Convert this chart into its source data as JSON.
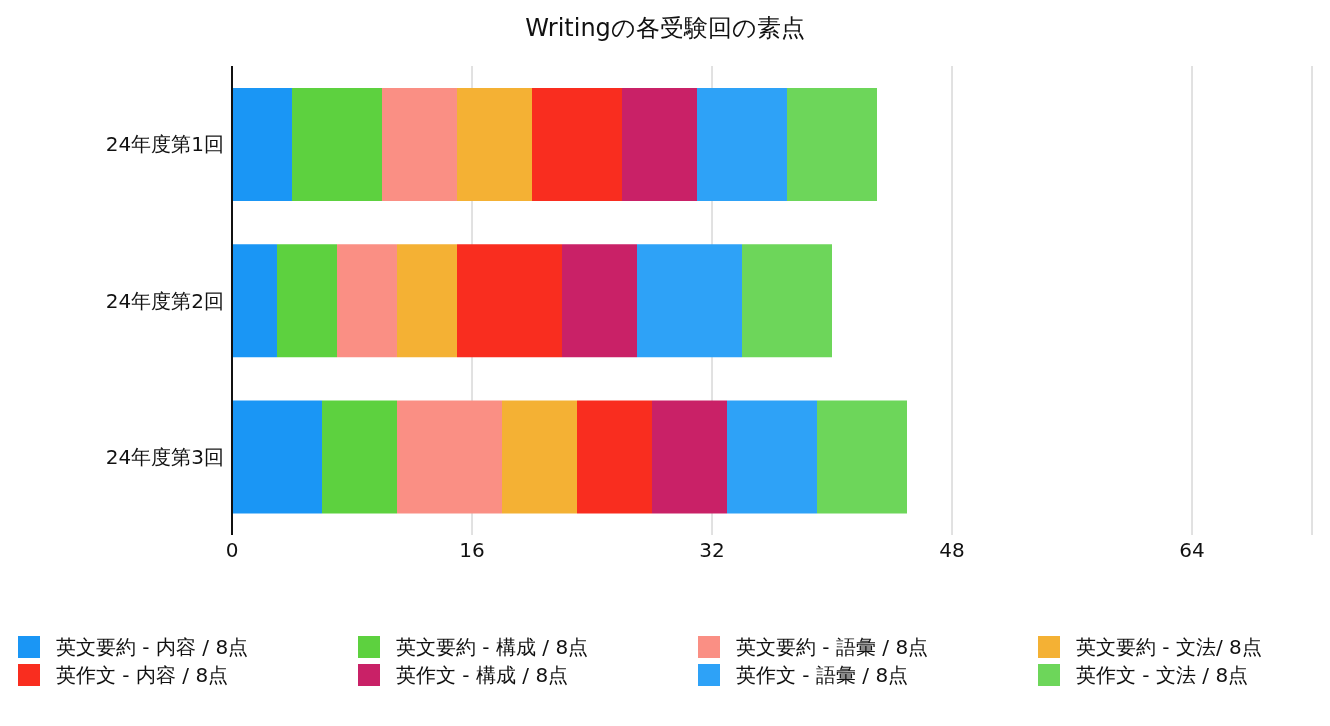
{
  "chart_data": {
    "type": "bar",
    "orientation": "horizontal",
    "stacked": true,
    "title": "Writingの各受験回の素点",
    "categories": [
      "24年度第1回",
      "24年度第2回",
      "24年度第3回"
    ],
    "series": [
      {
        "name": "英文要約 - 内容 / 8点",
        "color": "#1a96f5",
        "values": [
          4,
          3,
          6
        ]
      },
      {
        "name": "英文要約 - 構成 / 8点",
        "color": "#5dd13f",
        "values": [
          6,
          4,
          5
        ]
      },
      {
        "name": "英文要約 - 語彙 / 8点",
        "color": "#fa8f84",
        "values": [
          5,
          4,
          7
        ]
      },
      {
        "name": "英文要約 - 文法/ 8点",
        "color": "#f4b134",
        "values": [
          5,
          4,
          5
        ]
      },
      {
        "name": "英作文 - 内容 / 8点",
        "color": "#f92d1f",
        "values": [
          6,
          7,
          5
        ]
      },
      {
        "name": "英作文 - 構成 / 8点",
        "color": "#c92167",
        "values": [
          5,
          5,
          5
        ]
      },
      {
        "name": "英作文 - 語彙 / 8点",
        "color": "#2ea2f7",
        "values": [
          6,
          7,
          6
        ]
      },
      {
        "name": "英作文 - 文法 / 8点",
        "color": "#6dd65a",
        "values": [
          6,
          6,
          6
        ]
      }
    ],
    "xlim": [
      0,
      72
    ],
    "xticks": [
      0,
      16,
      32,
      48,
      64
    ],
    "grid": "x",
    "legend": "bottom"
  }
}
